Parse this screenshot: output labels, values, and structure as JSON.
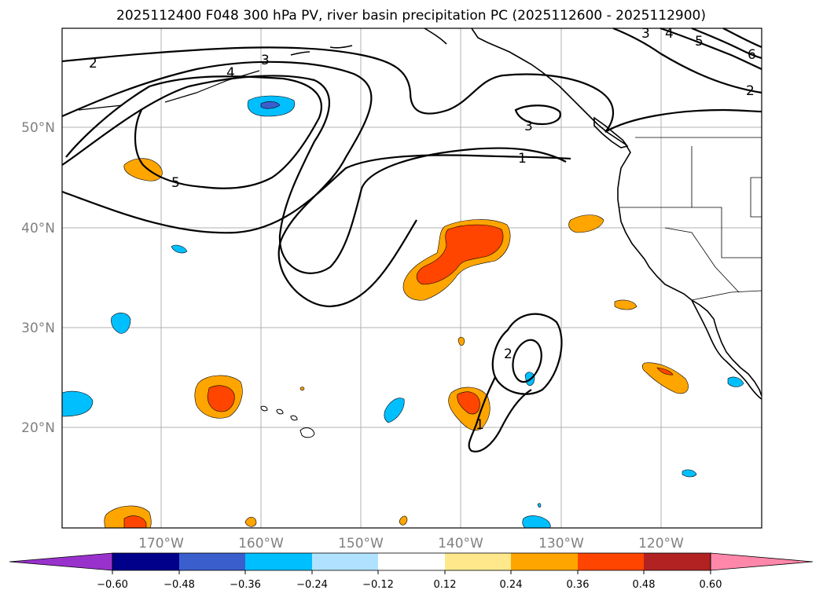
{
  "title": "2025112400 F048 300 hPa PV, river basin precipitation PC (2025112600 - 2025112900)",
  "map": {
    "lat_labels": [
      "50°N",
      "40°N",
      "30°N",
      "20°N"
    ],
    "lon_labels": [
      "170°W",
      "160°W",
      "150°W",
      "140°W",
      "130°W",
      "120°W"
    ],
    "contour_labels": [
      "2",
      "3",
      "4",
      "5",
      "3",
      "1",
      "3",
      "4",
      "5",
      "6",
      "2",
      "2",
      "1"
    ],
    "pv_contour_levels": [
      1,
      2,
      3,
      4,
      5,
      6
    ]
  },
  "colorbar": {
    "ticks": [
      "−0.60",
      "−0.48",
      "−0.36",
      "−0.24",
      "−0.12",
      "0.12",
      "0.24",
      "0.36",
      "0.48",
      "0.60"
    ],
    "colors": [
      "#9932cc",
      "#00008b",
      "#3a5fcd",
      "#00bfff",
      "#b0e2ff",
      "#ffffff",
      "#ffe88c",
      "#ffa500",
      "#ff4500",
      "#b22222",
      "#ff88aa"
    ]
  },
  "colors": {
    "ocean": "#ffffff",
    "land_outline": "#000000",
    "grid": "#b0b0b0",
    "pos_024": "#ffa500",
    "pos_036": "#ff4500",
    "neg_024": "#00bfff",
    "neg_036": "#3a5fcd"
  }
}
